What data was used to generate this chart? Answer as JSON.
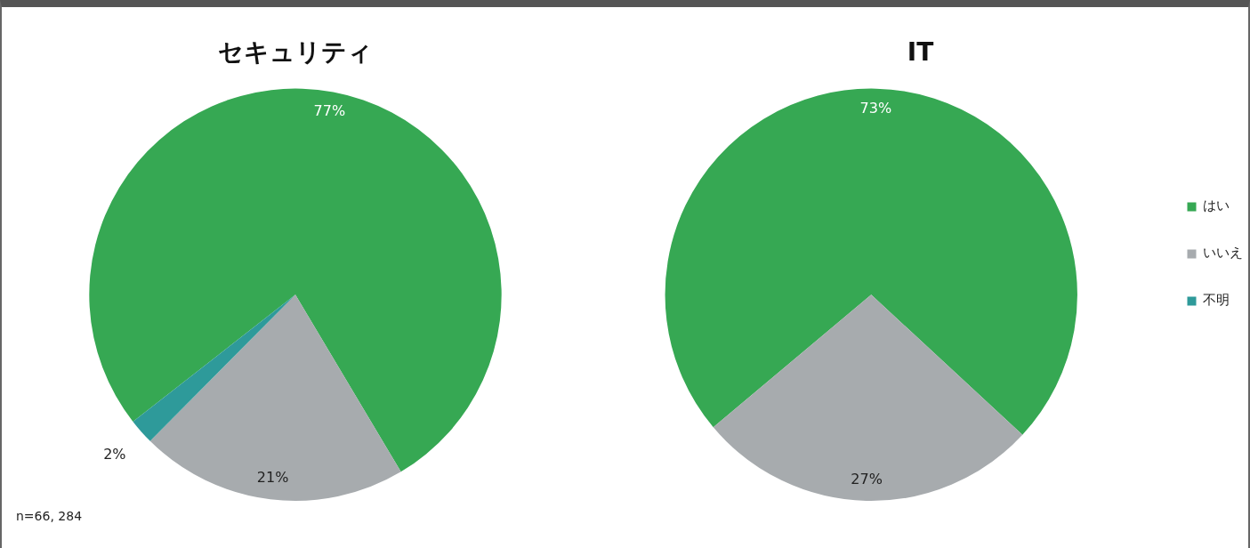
{
  "chart_data": [
    {
      "type": "pie",
      "title": "セキュリティ",
      "categories": [
        null,
        null,
        null
      ],
      "values": [
        77,
        21,
        2
      ],
      "value_labels": [
        "77%",
        "21%",
        "2%"
      ],
      "colors": [
        "#36a853",
        "#a7abae",
        "#2e9a9a"
      ],
      "annotations": [
        "n=66, 284"
      ]
    },
    {
      "type": "pie",
      "title": "IT",
      "categories": [
        "はい",
        "いいえ",
        "不明"
      ],
      "values": [
        73,
        27,
        0
      ],
      "value_labels": [
        "73%",
        "27%",
        null
      ],
      "colors": [
        "#36a853",
        "#a7abae",
        "#2e9a9a"
      ],
      "legend": "right"
    }
  ]
}
